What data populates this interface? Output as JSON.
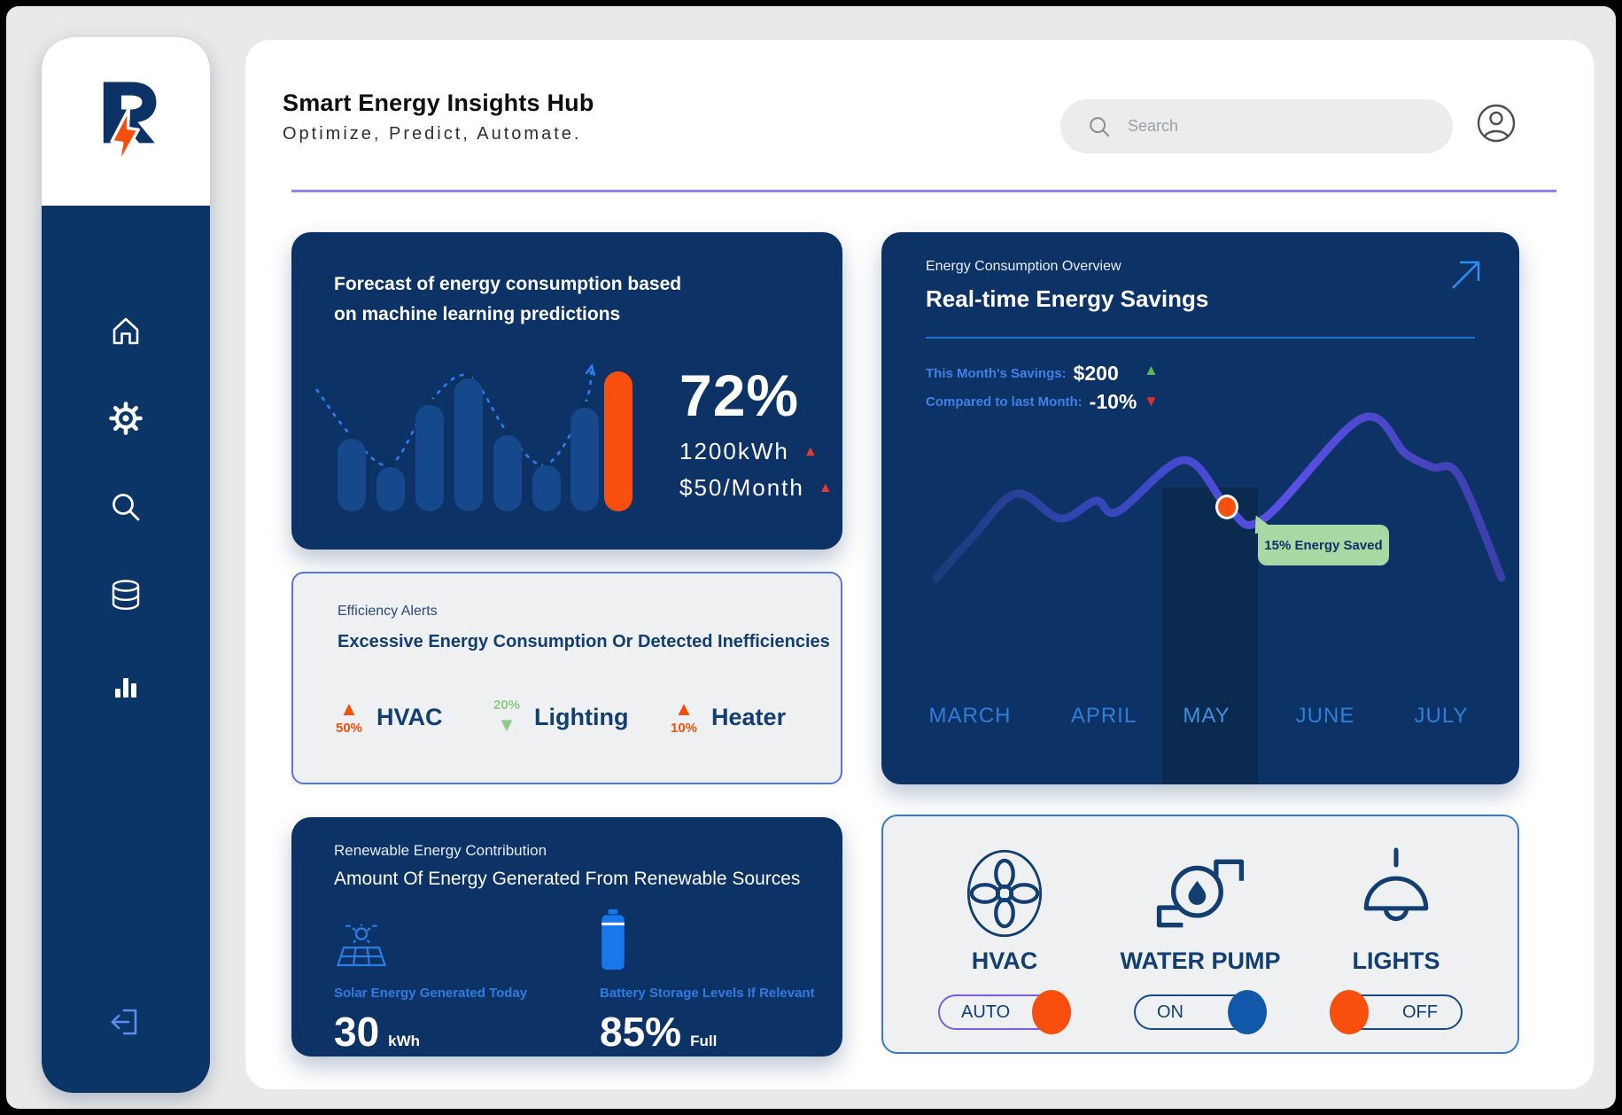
{
  "header": {
    "title": "Smart Energy Insights Hub",
    "subtitle": "Optimize, Predict, Automate.",
    "search_placeholder": "Search"
  },
  "sidebar": {
    "icons": [
      "home",
      "settings",
      "search",
      "database",
      "analytics",
      "logout"
    ]
  },
  "forecast": {
    "title_line1": "Forecast of energy consumption based",
    "title_line2": "on machine learning predictions",
    "percent": "72%",
    "stat1": "1200kWh",
    "stat2": "$50/Month",
    "chart_data": {
      "type": "bar",
      "values": [
        82,
        50,
        120,
        150,
        86,
        52,
        117,
        158
      ],
      "highlight_index": 7,
      "bar_color": "#16498c",
      "highlight_color": "#f94f0e",
      "trend_color": "#2e7ef0",
      "trend_points": [
        [
          28,
          32
        ],
        [
          68,
          85
        ],
        [
          112,
          117
        ],
        [
          156,
          47
        ],
        [
          200,
          17
        ],
        [
          244,
          81
        ],
        [
          288,
          117
        ],
        [
          331,
          50
        ],
        [
          339,
          6
        ]
      ]
    }
  },
  "alerts": {
    "label": "Efficiency Alerts",
    "title": "Excessive Energy Consumption Or Detected Inefficiencies",
    "up_color": "#f4500c",
    "down_color": "#8fcb8a",
    "items": [
      {
        "name": "HVAC",
        "value": "50%",
        "direction": "up"
      },
      {
        "name": "Lighting",
        "value": "20%",
        "direction": "down"
      },
      {
        "name": "Heater",
        "value": "10%",
        "direction": "up"
      }
    ]
  },
  "renewable": {
    "label": "Renewable Energy Contribution",
    "title": "Amount Of Energy Generated From Renewable Sources",
    "solar_caption": "Solar Energy Generated Today",
    "solar_value": "30",
    "solar_unit": "kWh",
    "battery_caption": "Battery Storage Levels If Relevant",
    "battery_value": "85%",
    "battery_unit": "Full"
  },
  "savings": {
    "label": "Energy Consumption Overview",
    "title": "Real-time Energy Savings",
    "stat1_label": "This Month's Savings:",
    "stat1_value": "$200",
    "stat2_label": "Compared to last Month:",
    "stat2_value": "-10%",
    "chart_data": {
      "type": "line",
      "x_labels": [
        "MARCH",
        "APRIL",
        "MAY",
        "JUNE",
        "JULY"
      ],
      "highlighted_label": "MAY",
      "points": [
        [
          62,
          390
        ],
        [
          102,
          345
        ],
        [
          152,
          295
        ],
        [
          202,
          323
        ],
        [
          242,
          303
        ],
        [
          267,
          315
        ],
        [
          342,
          257
        ],
        [
          393,
          313
        ],
        [
          432,
          323
        ],
        [
          542,
          210
        ],
        [
          592,
          250
        ],
        [
          622,
          265
        ],
        [
          652,
          275
        ],
        [
          700,
          390
        ]
      ],
      "marker_point": [
        393,
        313
      ],
      "marker_label": "15% Energy Saved",
      "line_gradient": [
        "#1a3c7c",
        "#3c48c4",
        "#5a50e6",
        "#3b3fa8"
      ]
    }
  },
  "devices": {
    "items": [
      {
        "name": "HVAC",
        "state": "AUTO",
        "icon": "fan",
        "knob_side": "right",
        "knob_color": "#f94f0e",
        "border_color": "#7a5ce8"
      },
      {
        "name": "WATER PUMP",
        "state": "ON",
        "icon": "pump",
        "knob_side": "right",
        "knob_color": "#1258aa",
        "border_color": "#1b4a8c"
      },
      {
        "name": "LIGHTS",
        "state": "OFF",
        "icon": "lamp",
        "knob_side": "left",
        "knob_color": "#f94f0e",
        "border_color": "#1b4a8c"
      }
    ]
  }
}
